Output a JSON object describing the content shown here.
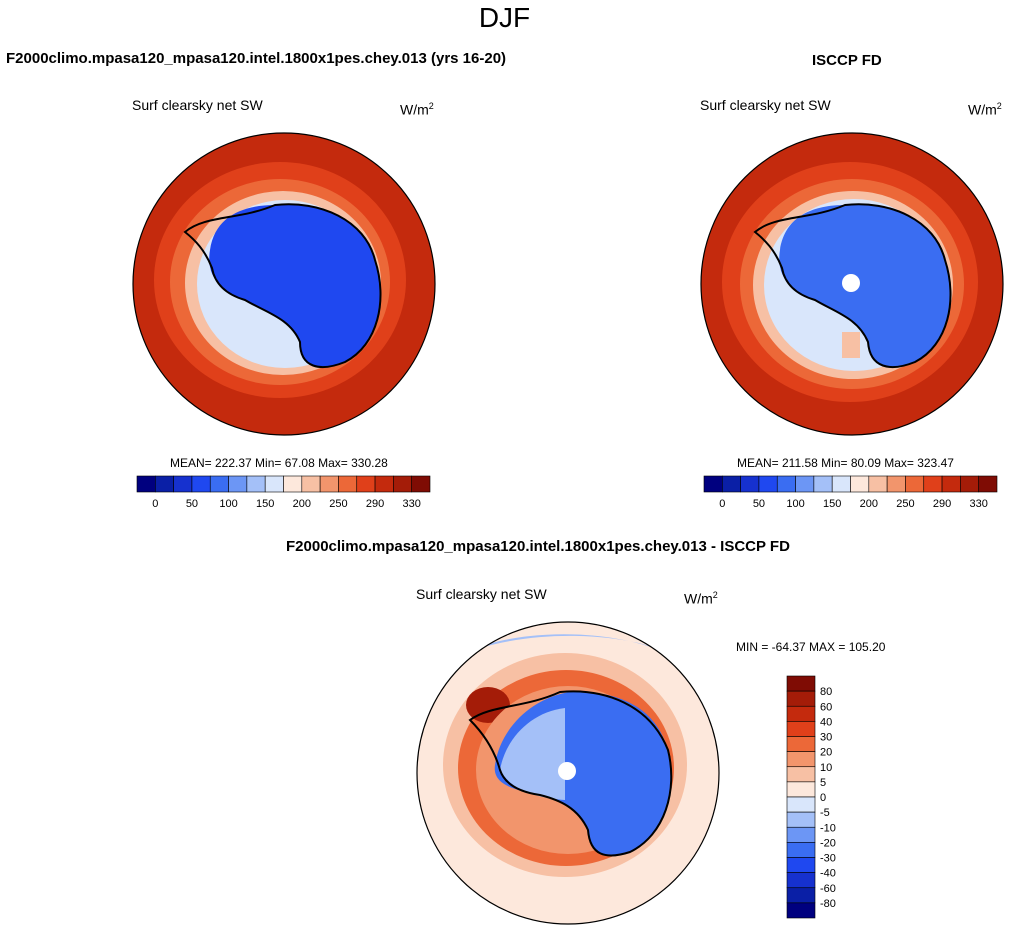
{
  "figure": {
    "season": "DJF",
    "units_main": "W/m",
    "units_sup": "2"
  },
  "panels": {
    "model": {
      "case_title": "F2000climo.mpasa120_mpasa120.intel.1800x1pes.chey.013 (yrs 16-20)",
      "title": "Surf clearsky net SW",
      "stats": "MEAN= 222.37  Min=  67.08  Max= 330.28"
    },
    "obs": {
      "case_title": "ISCCP FD",
      "title": "Surf clearsky net SW",
      "stats": "MEAN= 211.58  Min=  80.09  Max= 323.47"
    },
    "diff": {
      "case_title": "F2000climo.mpasa120_mpasa120.intel.1800x1pes.chey.013 - ISCCP FD",
      "title": "Surf clearsky net SW",
      "stats": "MIN = -64.37 MAX = 105.20"
    }
  },
  "chart_data": [
    {
      "type": "heatmap",
      "projection": "polar-stereographic-south",
      "title": "Surf clearsky net SW",
      "case": "F2000climo.mpasa120_mpasa120.intel.1800x1pes.chey.013 (yrs 16-20)",
      "units": "W/m2",
      "mean": 222.37,
      "min": 67.08,
      "max": 330.28,
      "levels": [
        0,
        25,
        50,
        75,
        100,
        125,
        150,
        175,
        200,
        225,
        250,
        275,
        290,
        310,
        330
      ],
      "tick_labels": [
        "0",
        "50",
        "100",
        "150",
        "200",
        "250",
        "290",
        "330"
      ],
      "colors": [
        "#00007f",
        "#0a1fa6",
        "#1631cf",
        "#1f48f0",
        "#3a6df2",
        "#6c96f5",
        "#a4c0f8",
        "#d9e6fb",
        "#fde8dc",
        "#f7c0a4",
        "#f2956c",
        "#ec6838",
        "#e0401a",
        "#c42a0d",
        "#a41c08",
        "#7f0c04"
      ]
    },
    {
      "type": "heatmap",
      "projection": "polar-stereographic-south",
      "title": "Surf clearsky net SW",
      "case": "ISCCP FD",
      "units": "W/m2",
      "mean": 211.58,
      "min": 80.09,
      "max": 323.47,
      "levels": [
        0,
        25,
        50,
        75,
        100,
        125,
        150,
        175,
        200,
        225,
        250,
        275,
        290,
        310,
        330
      ],
      "tick_labels": [
        "0",
        "50",
        "100",
        "150",
        "200",
        "250",
        "290",
        "330"
      ],
      "colors": [
        "#00007f",
        "#0a1fa6",
        "#1631cf",
        "#1f48f0",
        "#3a6df2",
        "#6c96f5",
        "#a4c0f8",
        "#d9e6fb",
        "#fde8dc",
        "#f7c0a4",
        "#f2956c",
        "#ec6838",
        "#e0401a",
        "#c42a0d",
        "#a41c08",
        "#7f0c04"
      ]
    },
    {
      "type": "heatmap",
      "projection": "polar-stereographic-south",
      "title": "Surf clearsky net SW",
      "case": "F2000climo.mpasa120_mpasa120.intel.1800x1pes.chey.013 - ISCCP FD",
      "units": "W/m2",
      "min": -64.37,
      "max": 105.2,
      "tick_labels": [
        "80",
        "60",
        "40",
        "30",
        "20",
        "10",
        "5",
        "0",
        "-5",
        "-10",
        "-20",
        "-30",
        "-40",
        "-60",
        "-80"
      ],
      "colors": [
        "#7f0c04",
        "#a41c08",
        "#c42a0d",
        "#e0401a",
        "#ec6838",
        "#f2956c",
        "#f7c0a4",
        "#fde8dc",
        "#d9e6fb",
        "#a4c0f8",
        "#6c96f5",
        "#3a6df2",
        "#1f48f0",
        "#1631cf",
        "#0a1fa6",
        "#00007f"
      ]
    }
  ]
}
